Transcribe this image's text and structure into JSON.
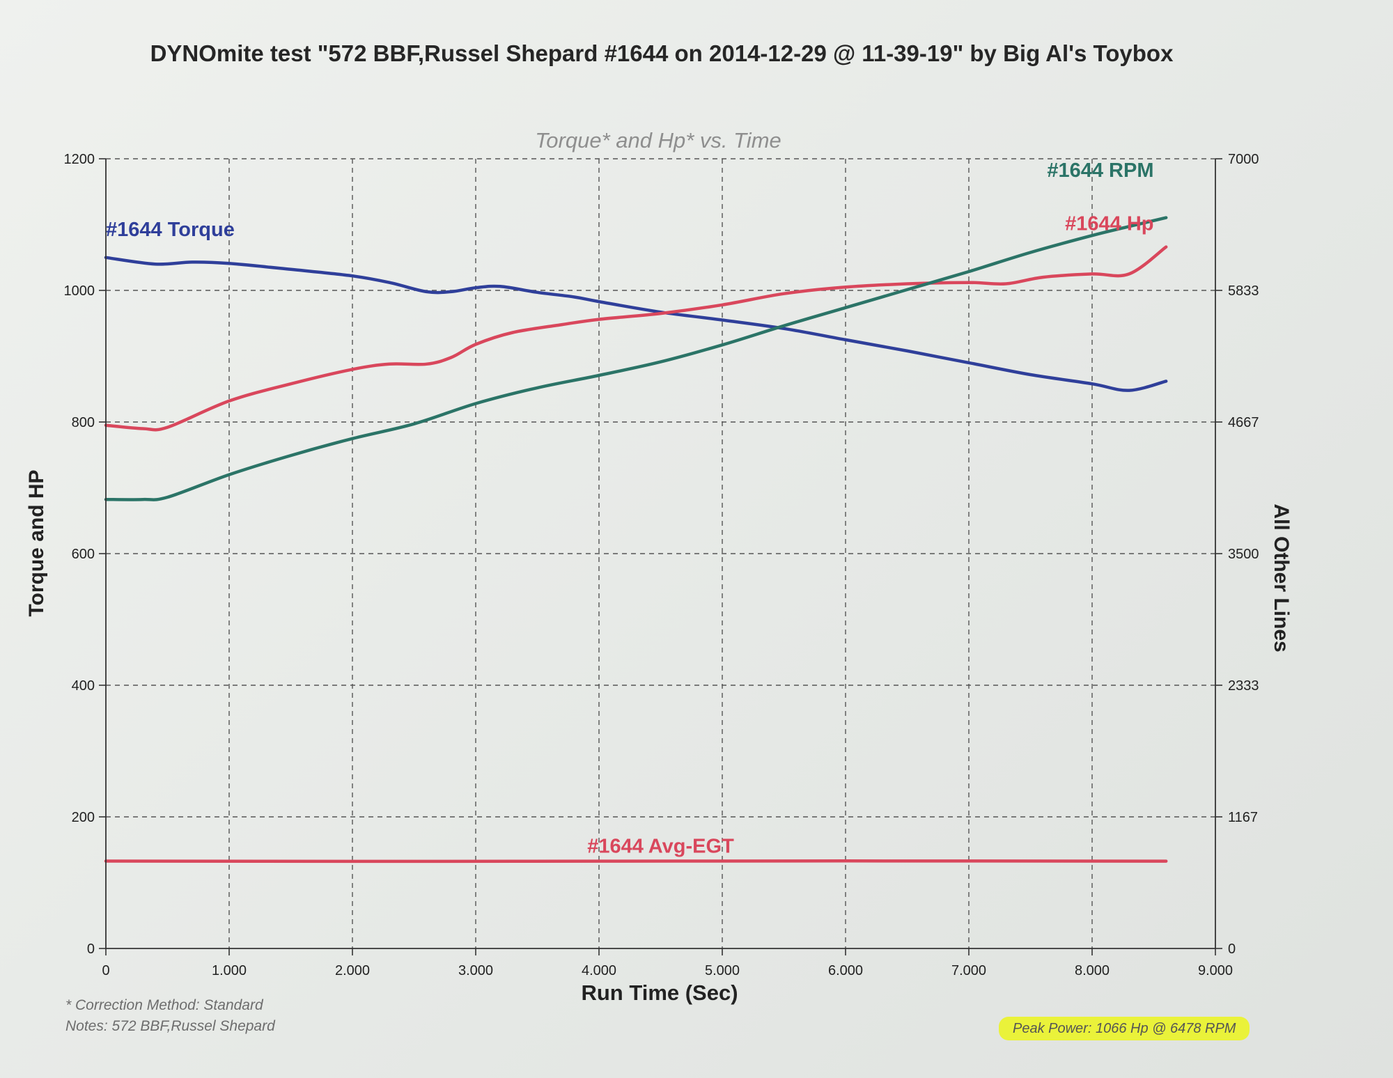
{
  "header": {
    "title": "DYNOmite test \"572 BBF,Russel Shepard #1644 on 2014-12-29 @ 11-39-19\" by Big Al's Toybox"
  },
  "footer": {
    "correction": "* Correction Method: Standard",
    "notes": "Notes: 572 BBF,Russel Shepard",
    "peak_power": "Peak Power: 1066 Hp @ 6478 RPM"
  },
  "colors": {
    "torque": "#2f3f9a",
    "hp": "#d9475c",
    "rpm": "#2b7467",
    "egt": "#d9475c",
    "highlight": "#eaf23a"
  },
  "chart_data": {
    "type": "line",
    "title": "Torque* and Hp* vs. Time",
    "xlabel": "Run Time (Sec)",
    "ylabel": "Torque and HP",
    "y2label": "All Other Lines",
    "xlim": [
      0,
      9
    ],
    "ylim": [
      0,
      1200
    ],
    "y2lim": [
      0,
      7000
    ],
    "grid": true,
    "xticks": [
      "0",
      "1.000",
      "2.000",
      "3.000",
      "4.000",
      "5.000",
      "6.000",
      "7.000",
      "8.000",
      "9.000"
    ],
    "yticks": [
      "0",
      "200",
      "400",
      "600",
      "800",
      "1000",
      "1200"
    ],
    "y2ticks": [
      "0",
      "1167",
      "2333",
      "3500",
      "4667",
      "5833",
      "7000"
    ],
    "series": [
      {
        "name": "#1644 Torque",
        "axis": "left",
        "color": "#2f3f9a",
        "x": [
          0,
          0.4,
          0.7,
          1.0,
          1.5,
          2.0,
          2.3,
          2.6,
          2.8,
          3.0,
          3.2,
          3.5,
          3.8,
          4.0,
          4.5,
          5.0,
          5.5,
          6.0,
          6.5,
          7.0,
          7.5,
          8.0,
          8.3,
          8.6
        ],
        "values": [
          1050,
          1040,
          1043,
          1041,
          1032,
          1022,
          1012,
          998,
          998,
          1004,
          1006,
          997,
          990,
          983,
          967,
          955,
          942,
          925,
          908,
          890,
          872,
          858,
          848,
          862
        ]
      },
      {
        "name": "#1644 Hp",
        "axis": "left",
        "color": "#d9475c",
        "x": [
          0,
          0.3,
          0.5,
          1.0,
          1.5,
          2.0,
          2.3,
          2.6,
          2.8,
          3.0,
          3.3,
          3.7,
          4.0,
          4.5,
          5.0,
          5.5,
          6.0,
          6.5,
          7.0,
          7.3,
          7.6,
          8.0,
          8.3,
          8.6
        ],
        "values": [
          795,
          790,
          792,
          832,
          858,
          880,
          888,
          888,
          898,
          918,
          936,
          948,
          956,
          965,
          978,
          995,
          1005,
          1010,
          1012,
          1010,
          1020,
          1025,
          1025,
          1066
        ]
      },
      {
        "name": "#1644 RPM",
        "axis": "right",
        "color": "#2b7467",
        "x": [
          0,
          0.3,
          0.5,
          1.0,
          1.5,
          2.0,
          2.5,
          3.0,
          3.5,
          4.0,
          4.5,
          5.0,
          5.5,
          6.0,
          6.5,
          7.0,
          7.5,
          8.0,
          8.3,
          8.6
        ],
        "values": [
          3980,
          3980,
          4000,
          4200,
          4370,
          4520,
          4650,
          4830,
          4970,
          5080,
          5200,
          5350,
          5520,
          5680,
          5840,
          6000,
          6170,
          6320,
          6400,
          6478
        ]
      },
      {
        "name": "#1644 Avg-EGT",
        "axis": "right",
        "color": "#d9475c",
        "x": [
          0,
          2.0,
          4.0,
          6.0,
          8.6
        ],
        "values": [
          775,
          772,
          774,
          776,
          774
        ]
      }
    ]
  }
}
